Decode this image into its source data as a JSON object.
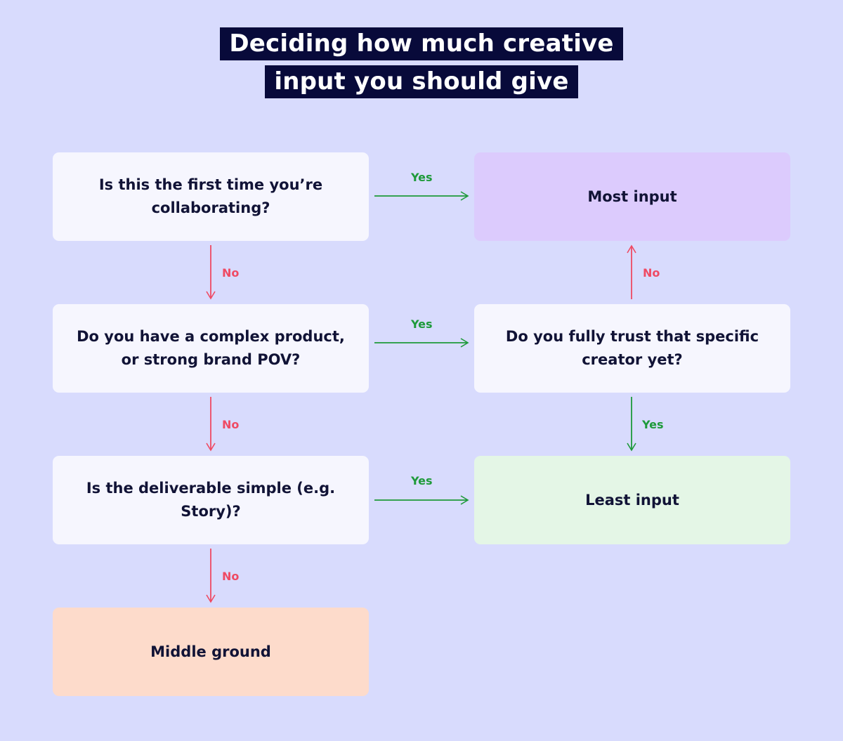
{
  "title": {
    "line1": "Deciding how much creative",
    "line2": "input you should give"
  },
  "nodes": {
    "q1": "Is this the first time you’re collaborating?",
    "q2": "Do you have a complex product, or strong brand POV?",
    "q3": "Is the deliverable simple (e.g. Story)?",
    "q4": "Do you fully trust that specific creator yet?",
    "most": "Most input",
    "least": "Least input",
    "middle": "Middle ground"
  },
  "edges": {
    "yes": "Yes",
    "no": "No"
  },
  "colors": {
    "background": "#d8dbfd",
    "title_bg": "#080a3a",
    "question_box": "#f6f6fe",
    "most_box": "#dccbfd",
    "least_box": "#e4f6e6",
    "middle_box": "#fddbcb",
    "yes": "#1e9a3a",
    "no": "#ef4a63"
  }
}
